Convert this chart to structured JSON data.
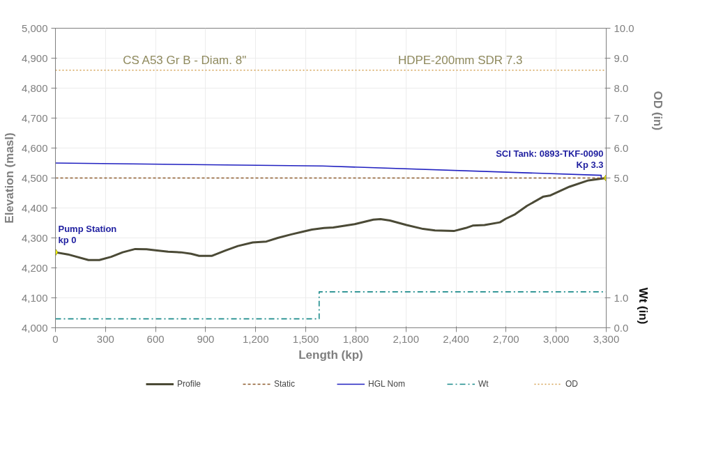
{
  "chart_data": {
    "type": "line",
    "xlabel": "Length (kp)",
    "ylabel": "Elevation (masl)",
    "y2label": "OD (in)",
    "y3label": "Wt (in)",
    "xlim": [
      0,
      3300
    ],
    "xticks": [
      0,
      {
        "value": 300,
        "label": "300"
      },
      {
        "value": 600,
        "label": "600"
      },
      {
        "value": 900,
        "label": "900"
      },
      {
        "value": 1200,
        "label": "1,200"
      },
      {
        "value": 1500,
        "label": "1,500"
      },
      {
        "value": 1800,
        "label": "1,800"
      },
      {
        "value": 2100,
        "label": "2,100"
      },
      {
        "value": 2400,
        "label": "2,400"
      },
      {
        "value": 2700,
        "label": "2,700"
      },
      {
        "value": 3000,
        "label": "3,000"
      },
      {
        "value": 3300,
        "label": "3,300"
      }
    ],
    "ylim": [
      4000,
      5000
    ],
    "yticks": [
      {
        "value": 4000,
        "label": "4,000"
      },
      {
        "value": 4100,
        "label": "4,100"
      },
      {
        "value": 4200,
        "label": "4,200"
      },
      {
        "value": 4300,
        "label": "4,300"
      },
      {
        "value": 4400,
        "label": "4,400"
      },
      {
        "value": 4500,
        "label": "4,500"
      },
      {
        "value": 4600,
        "label": "4,600"
      },
      {
        "value": 4700,
        "label": "4,700"
      },
      {
        "value": 4800,
        "label": "4,800"
      },
      {
        "value": 4900,
        "label": "4,900"
      },
      {
        "value": 5000,
        "label": "5,000"
      }
    ],
    "y2lim": [
      0,
      10
    ],
    "y2ticks": [
      {
        "value": 5,
        "label": "5.0"
      },
      {
        "value": 6,
        "label": "6.0"
      },
      {
        "value": 7,
        "label": "7.0"
      },
      {
        "value": 8,
        "label": "8.0"
      },
      {
        "value": 9,
        "label": "9.0"
      },
      {
        "value": 10,
        "label": "10.0"
      }
    ],
    "y3lim": [
      0,
      10
    ],
    "y3ticks": [
      {
        "value": 0,
        "label": "0.0"
      },
      {
        "value": 1,
        "label": "1.0"
      }
    ],
    "grid": true,
    "legend": "bottom",
    "series": [
      {
        "name": "Profile",
        "color": "#4b4a36",
        "line_style": "solid",
        "x": [
          0,
          75,
          198,
          263,
          334,
          403,
          478,
          546,
          608,
          675,
          751,
          813,
          861,
          936,
          1018,
          1093,
          1182,
          1264,
          1332,
          1414,
          1483,
          1537,
          1609,
          1665,
          1793,
          1905,
          1948,
          2004,
          2104,
          2203,
          2274,
          2387,
          2458,
          2500,
          2571,
          2663,
          2698,
          2754,
          2825,
          2924,
          2966,
          3080,
          3193,
          3300
        ],
        "values": [
          4252,
          4245,
          4226,
          4226,
          4237,
          4252,
          4263,
          4262,
          4258,
          4254,
          4252,
          4247,
          4240,
          4240,
          4258,
          4273,
          4285,
          4288,
          4300,
          4312,
          4321,
          4328,
          4333,
          4335,
          4346,
          4361,
          4363,
          4358,
          4343,
          4330,
          4325,
          4323,
          4333,
          4341,
          4343,
          4352,
          4364,
          4379,
          4407,
          4438,
          4442,
          4471,
          4492,
          4500
        ]
      },
      {
        "name": "Static",
        "color": "#8b5a2b",
        "line_style": "dashed",
        "x": [
          0,
          3300
        ],
        "values": [
          4500,
          4500
        ]
      },
      {
        "name": "HGL Nom",
        "color": "#2020c0",
        "line_style": "solid",
        "x": [
          0,
          1600,
          3270,
          3270
        ],
        "values": [
          4550,
          4540,
          4509,
          4500
        ]
      },
      {
        "name": "Wt",
        "color": "#1a8a8a",
        "line_style": "dashdot",
        "axis": "y3",
        "x": [
          0,
          1580,
          1580,
          3300
        ],
        "values": [
          0.3,
          0.3,
          1.2,
          1.2
        ]
      },
      {
        "name": "OD",
        "color": "#d4a050",
        "line_style": "dotted",
        "axis": "y2",
        "x": [
          0,
          3300
        ],
        "values": [
          8.6,
          8.6
        ]
      },
      {
        "type": "scatter",
        "marker": "diamond",
        "color": "#ffff00",
        "x": [
          0,
          3300
        ],
        "values": [
          4252,
          4500
        ]
      }
    ],
    "annotations": [
      "CS A53 Gr B - Diam. 8\"",
      "HDPE-200mm SDR 7.3",
      {
        "text": "Pump Station\nkp 0",
        "x": 0,
        "y": 4252
      },
      {
        "text": "SCI Tank: 0893-TKF-0090\nKp 3.3",
        "x": 3300,
        "y": 4500
      }
    ]
  }
}
